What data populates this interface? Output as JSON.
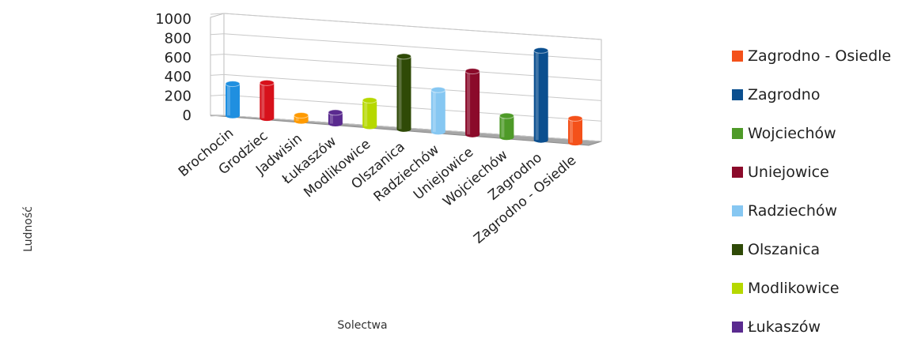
{
  "chart_data": {
    "type": "bar",
    "title": "",
    "xlabel": "Solectwa",
    "ylabel": "Ludność",
    "ylim": [
      0,
      1000
    ],
    "yticks": [
      "1000",
      "800",
      "600",
      "400",
      "200",
      "0"
    ],
    "categories": [
      "Brochocin",
      "Grodziec",
      "Jadwisin",
      "Łukaszów",
      "Modlikowice",
      "Olszanica",
      "Radziechów",
      "Uniejowice",
      "Wojciechów",
      "Zagrodno",
      "Zagrodno - Osiedle"
    ],
    "values": [
      340,
      380,
      60,
      120,
      280,
      780,
      450,
      680,
      230,
      960,
      260
    ],
    "colors": [
      "#1f8fe0",
      "#d7111b",
      "#ff9a00",
      "#5a2a8f",
      "#b6d800",
      "#2f4a07",
      "#86c7f2",
      "#8b0a2a",
      "#4e9a28",
      "#0b4f8f",
      "#f4511a"
    ],
    "grid": true,
    "legend_position": "right",
    "legend": [
      {
        "label": "Zagrodno - Osiedle",
        "color": "#f4511a"
      },
      {
        "label": "Zagrodno",
        "color": "#0b4f8f"
      },
      {
        "label": "Wojciechów",
        "color": "#4e9a28"
      },
      {
        "label": "Uniejowice",
        "color": "#8b0a2a"
      },
      {
        "label": "Radziechów",
        "color": "#86c7f2"
      },
      {
        "label": "Olszanica",
        "color": "#2f4a07"
      },
      {
        "label": "Modlikowice",
        "color": "#b6d800"
      },
      {
        "label": "Łukaszów",
        "color": "#5a2a8f"
      }
    ]
  }
}
